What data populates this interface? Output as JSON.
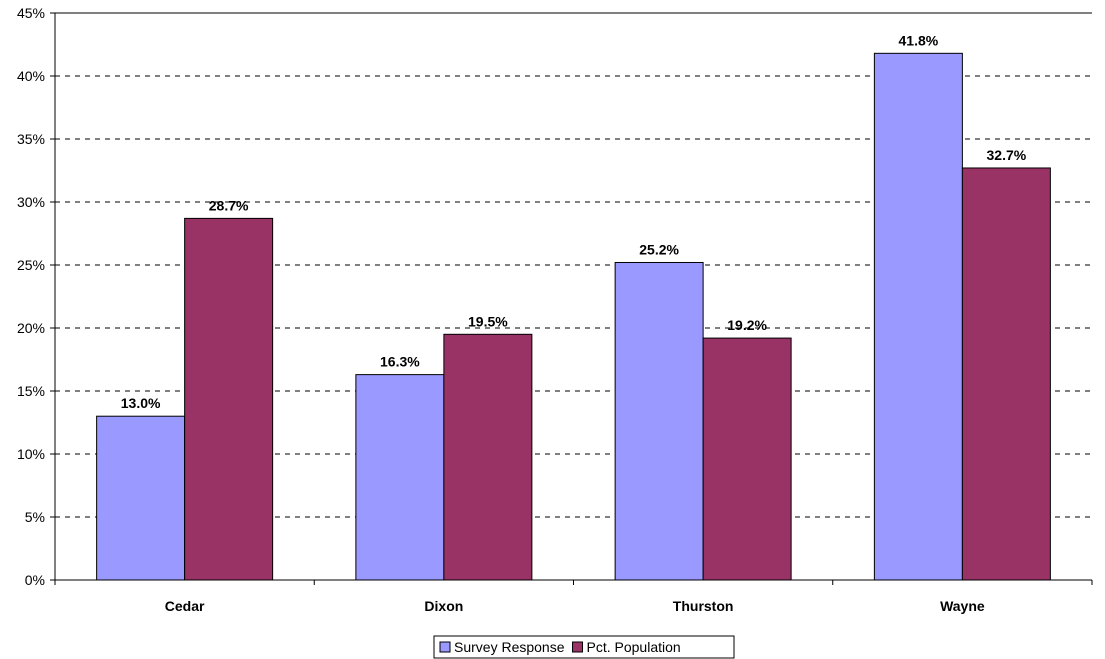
{
  "chart_data": {
    "type": "bar",
    "categories": [
      "Cedar",
      "Dixon",
      "Thurston",
      "Wayne"
    ],
    "series": [
      {
        "name": "Survey Response",
        "values": [
          13.0,
          16.3,
          25.2,
          41.8
        ],
        "color": "#9999FF"
      },
      {
        "name": "Pct. Population",
        "values": [
          28.7,
          19.5,
          19.2,
          32.7
        ],
        "color": "#993366"
      }
    ],
    "data_labels": [
      [
        "13.0%",
        "16.3%",
        "25.2%",
        "41.8%"
      ],
      [
        "28.7%",
        "19.5%",
        "19.2%",
        "32.7%"
      ]
    ],
    "y_ticks": [
      0,
      5,
      10,
      15,
      20,
      25,
      30,
      35,
      40,
      45
    ],
    "y_tick_labels": [
      "0%",
      "5%",
      "10%",
      "15%",
      "20%",
      "25%",
      "30%",
      "35%",
      "40%",
      "45%"
    ],
    "ylim": [
      0,
      45
    ],
    "grid": true,
    "legend_position": "bottom-center",
    "title": "",
    "xlabel": "",
    "ylabel": ""
  }
}
